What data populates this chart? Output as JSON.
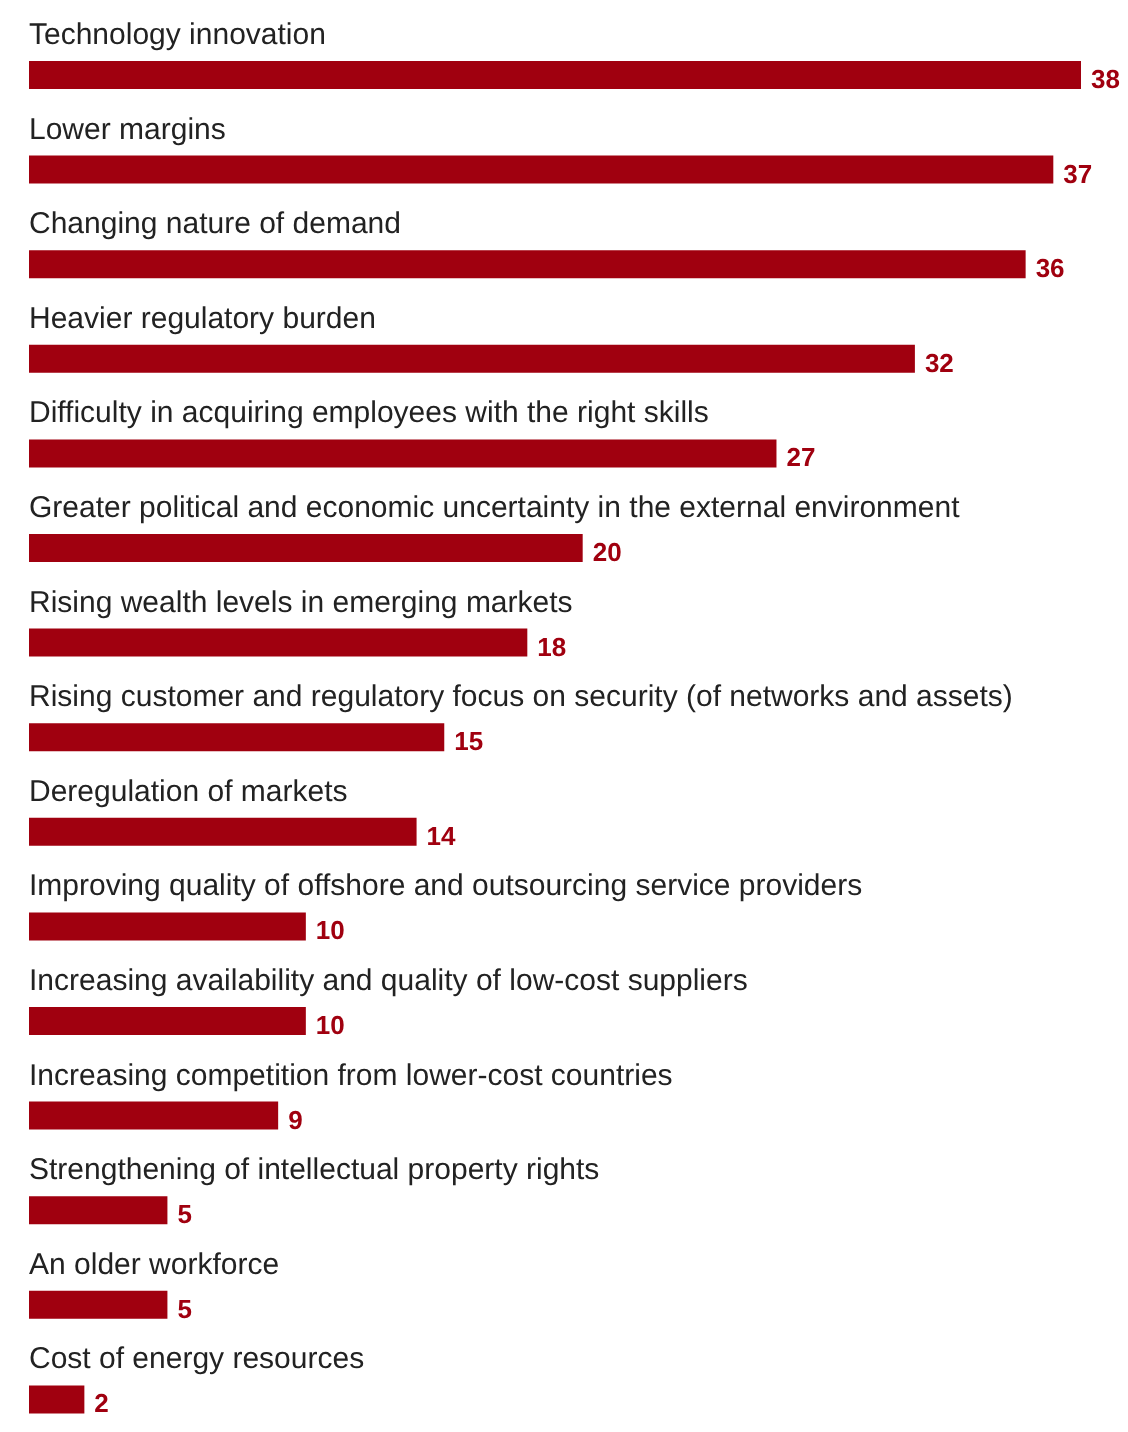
{
  "chart_data": {
    "type": "bar",
    "orientation": "horizontal",
    "data_labels": true,
    "color": "#a0000f",
    "categories": [
      "Technology innovation",
      "Lower margins",
      "Changing nature of demand",
      "Heavier regulatory burden",
      "Difficulty in acquiring employees with the right skills",
      "Greater political and economic uncertainty in the external environment",
      "Rising wealth levels in emerging markets",
      "Rising customer and regulatory focus on security (of networks and assets)",
      "Deregulation of markets",
      "Improving quality of offshore and outsourcing service providers",
      "Increasing availability and quality of low-cost suppliers",
      "Increasing competition from lower-cost countries",
      "Strengthening of intellectual property rights",
      "An older workforce",
      "Cost of energy resources"
    ],
    "values": [
      38,
      37,
      36,
      32,
      27,
      20,
      18,
      15,
      14,
      10,
      10,
      9,
      5,
      5,
      2
    ]
  }
}
